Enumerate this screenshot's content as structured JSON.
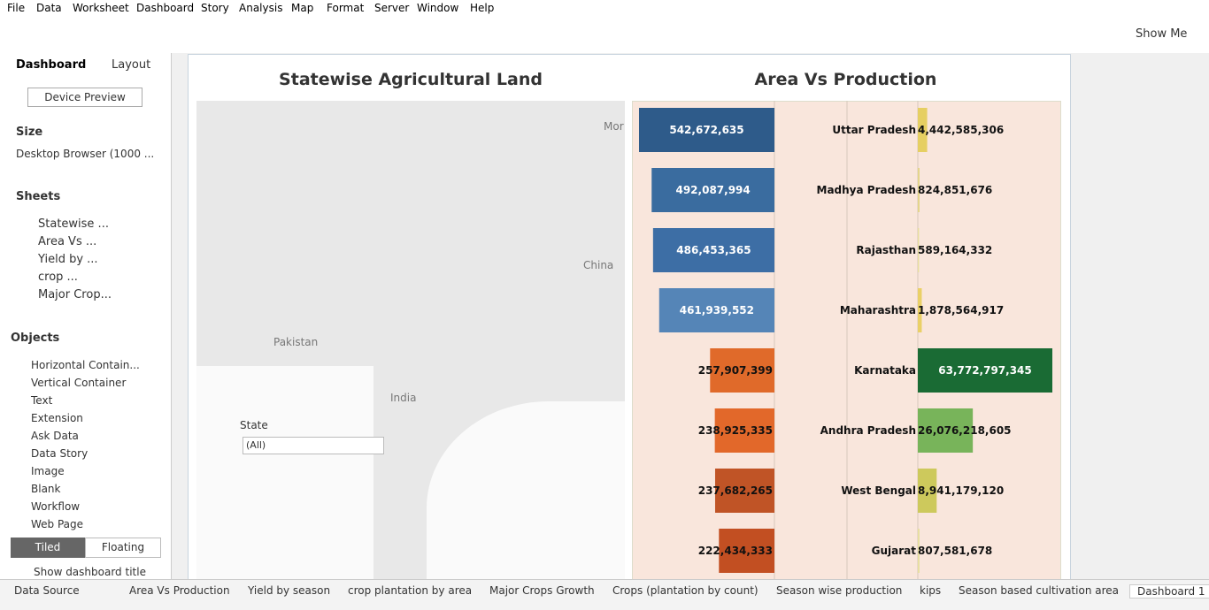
{
  "menu": [
    "File",
    "Data",
    "Worksheet",
    "Dashboard",
    "Story",
    "Analysis",
    "Map",
    "Format",
    "Server",
    "Window",
    "Help"
  ],
  "toolbar": {
    "show_me": "Show Me"
  },
  "sidebar": {
    "tabs": [
      "Dashboard",
      "Layout"
    ],
    "device_preview": "Device Preview",
    "size_heading": "Size",
    "size_value": "Desktop Browser (1000 ...",
    "sheets_heading": "Sheets",
    "sheets": [
      "Statewise ...",
      "Area Vs ...",
      "Yield by ...",
      "crop ...",
      "Major Crop..."
    ],
    "objects_heading": "Objects",
    "objects": [
      "Horizontal Contain...",
      "Vertical Container",
      "Text",
      "Extension",
      "Ask Data",
      "Data Story",
      "Image",
      "Blank",
      "Workflow",
      "Web Page"
    ],
    "layout_modes": [
      "Tiled",
      "Floating"
    ],
    "show_title": "Show dashboard title"
  },
  "map": {
    "title": "Statewise Agricultural Land",
    "labels": [
      "Mor",
      "China",
      "Pakistan",
      "India"
    ],
    "filter_label": "State",
    "filter_value": "(All)"
  },
  "chart_data": {
    "type": "bar",
    "title": "Area Vs Production",
    "categories": [
      "Uttar Pradesh",
      "Madhya Pradesh",
      "Rajasthan",
      "Maharashtra",
      "Karnataka",
      "Andhra Pradesh",
      "West Bengal",
      "Gujarat"
    ],
    "series": [
      {
        "values": [
          542672635,
          492087994,
          486453365,
          461939552,
          257907399,
          238925335,
          237682265,
          222434333
        ],
        "value_labels": [
          "542,672,635",
          "492,087,994",
          "486,453,365",
          "461,939,552",
          "257,907,399",
          "238,925,335",
          "237,682,265",
          "222,434,333"
        ],
        "colors": [
          "#2e5b8a",
          "#3a6c9f",
          "#3d6ea5",
          "#5585b7",
          "#e06a2a",
          "#e2682a",
          "#c05426",
          "#c24f22"
        ]
      },
      {
        "values": [
          4442585306,
          824851676,
          589164332,
          1878564917,
          63772797345,
          26076218605,
          8941179120,
          807581678
        ],
        "value_labels": [
          "4,442,585,306",
          "824,851,676",
          "589,164,332",
          "1,878,564,917",
          "63,772,797,345",
          "26,076,218,605",
          "8,941,179,120",
          "807,581,678"
        ],
        "colors": [
          "#e6cf62",
          "#e4d58a",
          "#e8df9f",
          "#ead067",
          "#1a6b34",
          "#78b45a",
          "#cdc95c",
          "#e8dfa0"
        ]
      }
    ]
  },
  "tabs": [
    "Data Source",
    "Area Vs Production",
    "Yield by season",
    "crop plantation by area",
    "Major Crops Growth",
    "Crops (plantation by count)",
    "Season wise production",
    "kips",
    "Season based cultivation area",
    "Dashboard 1"
  ]
}
